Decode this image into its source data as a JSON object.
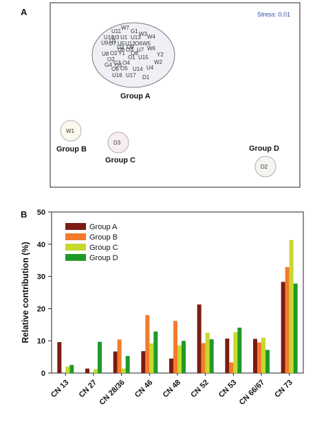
{
  "panels": {
    "a_letter": "A",
    "b_letter": "B"
  },
  "nmds": {
    "stress_label": "Stress: 0.01",
    "group_a_label": "Group A",
    "group_b_label": "Group B",
    "group_c_label": "Group C",
    "group_d_label": "Group D",
    "group_a_samples": [
      "W7",
      "G1",
      "W3",
      "U11",
      "U13",
      "W4",
      "U10",
      "U3",
      "U1",
      "O7",
      "U5",
      "U12",
      "U9",
      "U1",
      "U2",
      "O9",
      "O6",
      "W5",
      "U7",
      "O3",
      "W6",
      "U8",
      "O2",
      "Y1",
      "O8",
      "U6",
      "O1",
      "U15",
      "O2",
      "Y2",
      "G3",
      "O4",
      "G4",
      "U3",
      "W2",
      "O6",
      "O5",
      "U14",
      "U4",
      "U16",
      "U17",
      "D1"
    ],
    "group_b_sample": "W1",
    "group_c_sample": "D3",
    "group_d_sample": "D2",
    "colors": {
      "group_a_fill": "#eef0f6",
      "group_b_fill": "#fbf8ee",
      "group_c_fill": "#f8eef2",
      "group_d_fill": "#f5f5f0"
    }
  },
  "chart_data": {
    "type": "bar",
    "categories": [
      "CN 13",
      "CN 27",
      "CN 28/36",
      "CN 46",
      "CN 48",
      "CN 52",
      "CN 53",
      "CN 66/67",
      "CN 73"
    ],
    "series": [
      {
        "name": "Group A",
        "color": "#7b1c12",
        "values": [
          9.6,
          1.4,
          6.7,
          6.8,
          4.5,
          21.3,
          10.7,
          10.6,
          28.3
        ]
      },
      {
        "name": "Group B",
        "color": "#f37b2b",
        "values": [
          0,
          0,
          10.4,
          18.0,
          16.2,
          9.3,
          3.3,
          9.5,
          32.9
        ]
      },
      {
        "name": "Group C",
        "color": "#c6d92c",
        "values": [
          2.0,
          1.2,
          1.4,
          9.2,
          8.6,
          12.5,
          12.7,
          11.0,
          41.3
        ]
      },
      {
        "name": "Group D",
        "color": "#1f9a2a",
        "values": [
          2.5,
          9.7,
          5.3,
          12.9,
          10.0,
          10.5,
          14.1,
          7.2,
          27.8
        ]
      }
    ],
    "ylabel": "Relative contribution (%)",
    "xlabel": "",
    "ylim": [
      0,
      50
    ],
    "yticks": [
      0,
      10,
      20,
      30,
      40,
      50
    ],
    "legend_position": "top-left",
    "grid": false
  }
}
